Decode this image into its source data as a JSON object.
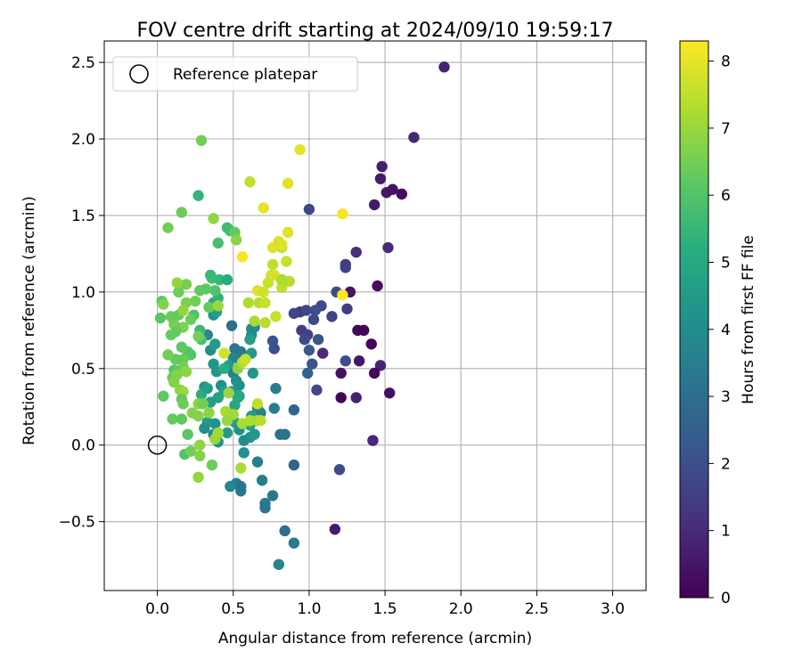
{
  "chart_data": {
    "type": "scatter",
    "title": "FOV centre drift starting at 2024/09/10 19:59:17",
    "xlabel": "Angular distance from reference (arcmin)",
    "ylabel": "Rotation from reference (arcmin)",
    "xlim": [
      -0.35,
      3.22
    ],
    "ylim": [
      -0.95,
      2.64
    ],
    "xticks": [
      0.0,
      0.5,
      1.0,
      1.5,
      2.0,
      2.5,
      3.0
    ],
    "xtick_labels": [
      "0.0",
      "0.5",
      "1.0",
      "1.5",
      "2.0",
      "2.5",
      "3.0"
    ],
    "yticks": [
      -0.5,
      0.0,
      0.5,
      1.0,
      1.5,
      2.0,
      2.5
    ],
    "ytick_labels": [
      "−0.5",
      "0.0",
      "0.5",
      "1.0",
      "1.5",
      "2.0",
      "2.5"
    ],
    "grid": true,
    "legend": {
      "placement": "top-left",
      "entries": [
        "Reference platepar"
      ]
    },
    "reference_point": {
      "x": 0.0,
      "y": 0.0
    },
    "colorbar": {
      "label": "Hours from first FF file",
      "colormap": "viridis",
      "range": [
        0,
        8.3
      ],
      "ticks": [
        0,
        1,
        2,
        3,
        4,
        5,
        6,
        7,
        8
      ],
      "tick_labels": [
        "0",
        "1",
        "2",
        "3",
        "4",
        "5",
        "6",
        "7",
        "8"
      ]
    },
    "points": [
      [
        1.89,
        2.47,
        0.8
      ],
      [
        1.69,
        2.01,
        0.9
      ],
      [
        1.48,
        1.82,
        0.7
      ],
      [
        1.47,
        1.74,
        0.6
      ],
      [
        1.51,
        1.65,
        0.5
      ],
      [
        1.55,
        1.67,
        0.4
      ],
      [
        1.61,
        1.64,
        0.3
      ],
      [
        1.43,
        1.57,
        0.6
      ],
      [
        1.52,
        1.29,
        1.0
      ],
      [
        1.31,
        1.26,
        1.1
      ],
      [
        1.24,
        1.18,
        1.5
      ],
      [
        1.24,
        1.16,
        1.6
      ],
      [
        1.27,
        1.0,
        0.5
      ],
      [
        1.45,
        1.04,
        0.3
      ],
      [
        1.25,
        0.89,
        1.5
      ],
      [
        1.32,
        0.75,
        0.2
      ],
      [
        1.36,
        0.75,
        0.1
      ],
      [
        1.41,
        0.66,
        0.1
      ],
      [
        1.33,
        0.55,
        0.5
      ],
      [
        1.47,
        0.52,
        0.8
      ],
      [
        1.43,
        0.47,
        0.2
      ],
      [
        1.21,
        0.47,
        0.4
      ],
      [
        1.24,
        0.55,
        2.0
      ],
      [
        1.31,
        0.31,
        0.8
      ],
      [
        1.21,
        0.31,
        0.1
      ],
      [
        1.53,
        0.34,
        0.4
      ],
      [
        1.42,
        0.03,
        0.9
      ],
      [
        1.2,
        -0.16,
        1.9
      ],
      [
        1.17,
        -0.55,
        0.6
      ],
      [
        1.0,
        1.54,
        1.8
      ],
      [
        1.04,
        0.88,
        2.0
      ],
      [
        1.08,
        0.91,
        1.9
      ],
      [
        1.18,
        1.0,
        1.9
      ],
      [
        1.15,
        0.84,
        1.7
      ],
      [
        0.94,
        0.87,
        1.3
      ],
      [
        0.98,
        0.88,
        1.7
      ],
      [
        0.95,
        0.75,
        1.5
      ],
      [
        0.99,
        0.72,
        1.6
      ],
      [
        0.97,
        0.69,
        1.9
      ],
      [
        1.03,
        0.82,
        1.8
      ],
      [
        1.06,
        0.69,
        2.2
      ],
      [
        1.0,
        0.62,
        2.3
      ],
      [
        1.09,
        0.6,
        1.0
      ],
      [
        1.02,
        0.53,
        2.1
      ],
      [
        0.99,
        0.47,
        2.6
      ],
      [
        1.05,
        0.36,
        1.8
      ],
      [
        0.9,
        0.86,
        1.8
      ],
      [
        0.82,
        1.08,
        1.1
      ],
      [
        0.76,
        0.68,
        2.2
      ],
      [
        0.77,
        0.63,
        2.0
      ],
      [
        0.78,
        0.37,
        3.4
      ],
      [
        0.77,
        0.24,
        3.5
      ],
      [
        0.9,
        0.23,
        2.7
      ],
      [
        0.81,
        0.07,
        3.0
      ],
      [
        0.84,
        0.07,
        3.1
      ],
      [
        0.9,
        -0.13,
        2.6
      ],
      [
        0.76,
        -0.33,
        3.3
      ],
      [
        0.71,
        -0.38,
        3.4
      ],
      [
        0.71,
        -0.41,
        3.2
      ],
      [
        0.66,
        -0.11,
        3.5
      ],
      [
        0.69,
        -0.23,
        3.5
      ],
      [
        0.84,
        -0.56,
        3.0
      ],
      [
        0.9,
        -0.64,
        3.4
      ],
      [
        0.8,
        -0.78,
        3.7
      ],
      [
        0.52,
        -0.25,
        3.6
      ],
      [
        0.55,
        -0.3,
        3.3
      ],
      [
        0.55,
        -0.27,
        3.1
      ],
      [
        0.48,
        -0.27,
        3.8
      ],
      [
        0.57,
        -0.05,
        4.2
      ],
      [
        0.66,
        0.24,
        3.8
      ],
      [
        0.68,
        0.21,
        3.6
      ],
      [
        0.62,
        0.19,
        4.5
      ],
      [
        0.61,
        0.13,
        4.8
      ],
      [
        0.61,
        0.05,
        4.3
      ],
      [
        0.64,
        0.07,
        4.4
      ],
      [
        0.57,
        0.03,
        4.0
      ],
      [
        0.49,
        0.78,
        3.0
      ],
      [
        0.62,
        0.76,
        4.1
      ],
      [
        0.62,
        0.72,
        4.0
      ],
      [
        0.64,
        0.77,
        3.9
      ],
      [
        0.61,
        0.69,
        4.6
      ],
      [
        0.62,
        0.6,
        4.5
      ],
      [
        0.63,
        0.47,
        4.4
      ],
      [
        0.55,
        0.61,
        3.4
      ],
      [
        0.55,
        0.55,
        3.4
      ],
      [
        0.51,
        0.63,
        3.2
      ],
      [
        0.5,
        0.57,
        3.7
      ],
      [
        0.47,
        0.52,
        4.5
      ],
      [
        0.5,
        0.47,
        3.6
      ],
      [
        0.52,
        0.42,
        4.0
      ],
      [
        0.54,
        0.39,
        4.2
      ],
      [
        0.49,
        0.35,
        4.4
      ],
      [
        0.53,
        0.31,
        4.7
      ],
      [
        0.51,
        0.26,
        4.9
      ],
      [
        0.49,
        0.19,
        4.8
      ],
      [
        0.51,
        0.15,
        4.6
      ],
      [
        0.54,
        0.1,
        4.1
      ],
      [
        0.46,
        0.08,
        4.5
      ],
      [
        0.4,
        0.02,
        4.3
      ],
      [
        0.37,
        0.07,
        3.8
      ],
      [
        0.38,
        0.14,
        4.2
      ],
      [
        0.33,
        0.15,
        4.5
      ],
      [
        0.31,
        0.11,
        4.0
      ],
      [
        0.42,
        0.39,
        4.0
      ],
      [
        0.44,
        0.35,
        4.7
      ],
      [
        0.4,
        0.31,
        4.8
      ],
      [
        0.35,
        0.28,
        4.6
      ],
      [
        0.31,
        0.38,
        4.3
      ],
      [
        0.29,
        0.33,
        5.2
      ],
      [
        0.37,
        0.53,
        4.3
      ],
      [
        0.39,
        0.48,
        4.4
      ],
      [
        0.44,
        0.5,
        5.2
      ],
      [
        0.35,
        0.62,
        4.0
      ],
      [
        0.38,
        0.66,
        4.6
      ],
      [
        0.33,
        0.72,
        3.8
      ],
      [
        0.37,
        0.85,
        4.2
      ],
      [
        0.39,
        0.87,
        4.6
      ],
      [
        0.37,
        0.93,
        5.0
      ],
      [
        0.4,
        0.96,
        5.3
      ],
      [
        0.41,
        1.08,
        5.5
      ],
      [
        0.46,
        1.08,
        5.1
      ],
      [
        0.4,
        1.32,
        5.8
      ],
      [
        0.46,
        1.42,
        5.6
      ],
      [
        0.48,
        1.4,
        5.7
      ],
      [
        0.51,
        1.39,
        6.3
      ],
      [
        0.52,
        1.34,
        6.8
      ],
      [
        0.37,
        1.48,
        6.9
      ],
      [
        0.35,
        1.11,
        5.4
      ],
      [
        0.36,
        1.09,
        5.6
      ],
      [
        0.38,
        1.01,
        6.0
      ],
      [
        0.32,
        1.02,
        6.2
      ],
      [
        0.34,
        0.9,
        6.3
      ],
      [
        0.28,
        1.01,
        6.2
      ],
      [
        0.25,
        0.94,
        6.5
      ],
      [
        0.24,
        0.85,
        6.0
      ],
      [
        0.19,
        0.93,
        6.6
      ],
      [
        0.22,
        0.82,
        6.4
      ],
      [
        0.28,
        0.75,
        5.6
      ],
      [
        0.29,
        0.69,
        5.8
      ],
      [
        0.27,
        0.71,
        6.5
      ],
      [
        0.17,
        0.77,
        6.6
      ],
      [
        0.11,
        0.79,
        6.5
      ],
      [
        0.09,
        0.84,
        6.4
      ],
      [
        0.14,
        0.85,
        6.3
      ],
      [
        0.17,
        0.88,
        6.9
      ],
      [
        0.14,
        1.0,
        6.4
      ],
      [
        0.19,
        1.05,
        6.5
      ],
      [
        0.13,
        1.06,
        6.9
      ],
      [
        0.03,
        0.94,
        6.2
      ],
      [
        0.04,
        0.92,
        6.7
      ],
      [
        0.02,
        0.83,
        6.1
      ],
      [
        0.09,
        0.72,
        6.3
      ],
      [
        0.12,
        0.74,
        6.3
      ],
      [
        0.16,
        0.64,
        6.2
      ],
      [
        0.2,
        0.61,
        6.1
      ],
      [
        0.22,
        0.59,
        6.0
      ],
      [
        0.17,
        0.56,
        6.4
      ],
      [
        0.12,
        0.56,
        6.3
      ],
      [
        0.07,
        0.59,
        6.5
      ],
      [
        0.11,
        0.49,
        6.1
      ],
      [
        0.1,
        0.44,
        6.4
      ],
      [
        0.13,
        0.46,
        6.7
      ],
      [
        0.17,
        0.51,
        6.5
      ],
      [
        0.19,
        0.48,
        6.8
      ],
      [
        0.11,
        0.41,
        6.7
      ],
      [
        0.15,
        0.36,
        6.8
      ],
      [
        0.17,
        0.35,
        7.0
      ],
      [
        0.16,
        0.3,
        6.3
      ],
      [
        0.17,
        0.27,
        6.4
      ],
      [
        0.04,
        0.32,
        6.2
      ],
      [
        0.23,
        0.21,
        6.7
      ],
      [
        0.27,
        0.19,
        6.7
      ],
      [
        0.1,
        0.17,
        6.3
      ],
      [
        0.16,
        0.17,
        6.2
      ],
      [
        0.2,
        0.07,
        6.1
      ],
      [
        0.18,
        -0.06,
        6.0
      ],
      [
        0.22,
        -0.04,
        6.5
      ],
      [
        0.28,
        0.0,
        6.9
      ],
      [
        0.28,
        -0.07,
        6.7
      ],
      [
        0.27,
        -0.21,
        6.9
      ],
      [
        0.36,
        -0.13,
        6.4
      ],
      [
        0.34,
        0.21,
        6.8
      ],
      [
        0.38,
        0.04,
        7.0
      ],
      [
        0.4,
        0.08,
        7.1
      ],
      [
        0.45,
        0.22,
        7.2
      ],
      [
        0.5,
        0.2,
        7.1
      ],
      [
        0.46,
        0.16,
        7.0
      ],
      [
        0.56,
        0.14,
        7.2
      ],
      [
        0.61,
        0.16,
        7.3
      ],
      [
        0.66,
        0.16,
        7.2
      ],
      [
        0.68,
        0.16,
        7.4
      ],
      [
        0.66,
        0.27,
        7.5
      ],
      [
        0.47,
        0.34,
        7.0
      ],
      [
        0.53,
        0.5,
        6.8
      ],
      [
        0.56,
        0.54,
        7.4
      ],
      [
        0.58,
        0.56,
        7.6
      ],
      [
        0.44,
        0.6,
        7.7
      ],
      [
        0.55,
        -0.15,
        7.2
      ],
      [
        0.4,
        0.91,
        7.0
      ],
      [
        0.6,
        0.93,
        7.3
      ],
      [
        0.67,
        0.93,
        7.4
      ],
      [
        0.64,
        0.81,
        7.2
      ],
      [
        0.71,
        0.8,
        7.4
      ],
      [
        0.78,
        0.84,
        7.6
      ],
      [
        0.71,
        0.93,
        7.6
      ],
      [
        0.73,
        1.06,
        7.6
      ],
      [
        0.75,
        1.11,
        7.7
      ],
      [
        0.77,
        1.11,
        7.8
      ],
      [
        0.66,
        1.01,
        7.9
      ],
      [
        0.7,
        1.0,
        7.7
      ],
      [
        0.82,
        1.03,
        7.5
      ],
      [
        0.87,
        1.07,
        7.4
      ],
      [
        0.76,
        1.18,
        7.5
      ],
      [
        0.85,
        1.2,
        7.6
      ],
      [
        0.82,
        1.29,
        7.6
      ],
      [
        0.76,
        1.29,
        7.9
      ],
      [
        0.8,
        1.33,
        7.8
      ],
      [
        0.82,
        1.31,
        7.9
      ],
      [
        0.86,
        1.39,
        7.9
      ],
      [
        0.56,
        1.23,
        8.2
      ],
      [
        0.61,
        1.72,
        7.5
      ],
      [
        0.7,
        1.55,
        8.0
      ],
      [
        0.86,
        1.71,
        7.9
      ],
      [
        0.94,
        1.93,
        8.0
      ],
      [
        1.22,
        1.51,
        8.2
      ],
      [
        1.22,
        0.98,
        8.3
      ],
      [
        0.82,
        1.08,
        7.3
      ],
      [
        0.29,
        1.99,
        6.5
      ],
      [
        0.27,
        1.63,
        5.4
      ],
      [
        0.16,
        1.52,
        6.4
      ],
      [
        0.07,
        1.42,
        6.5
      ],
      [
        0.54,
        0.32,
        4.9
      ],
      [
        0.33,
        0.37,
        4.7
      ],
      [
        0.27,
        0.27,
        6.8
      ],
      [
        0.3,
        0.27,
        6.5
      ]
    ]
  }
}
